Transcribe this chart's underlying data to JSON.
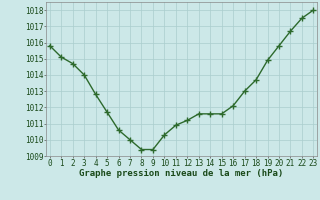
{
  "x": [
    0,
    1,
    2,
    3,
    4,
    5,
    6,
    7,
    8,
    9,
    10,
    11,
    12,
    13,
    14,
    15,
    16,
    17,
    18,
    19,
    20,
    21,
    22,
    23
  ],
  "y": [
    1015.8,
    1015.1,
    1014.7,
    1014.0,
    1012.8,
    1011.7,
    1010.6,
    1010.0,
    1009.4,
    1009.4,
    1010.3,
    1010.9,
    1011.2,
    1011.6,
    1011.6,
    1011.6,
    1012.1,
    1013.0,
    1013.7,
    1014.9,
    1015.8,
    1016.7,
    1017.5,
    1018.0
  ],
  "ylim": [
    1009.0,
    1018.5
  ],
  "yticks": [
    1009,
    1010,
    1011,
    1012,
    1013,
    1014,
    1015,
    1016,
    1017,
    1018
  ],
  "xticks": [
    0,
    1,
    2,
    3,
    4,
    5,
    6,
    7,
    8,
    9,
    10,
    11,
    12,
    13,
    14,
    15,
    16,
    17,
    18,
    19,
    20,
    21,
    22,
    23
  ],
  "xlabel": "Graphe pression niveau de la mer (hPa)",
  "line_color": "#2d6a2d",
  "marker": "+",
  "marker_color": "#2d6a2d",
  "background_color": "#cce8e8",
  "grid_color": "#aacece",
  "axis_label_color": "#1a4a1a",
  "tick_label_color": "#1a4a1a",
  "tick_fontsize": 5.5,
  "xlabel_fontsize": 6.5,
  "line_width": 1.0,
  "marker_size": 4,
  "marker_edge_width": 1.0
}
